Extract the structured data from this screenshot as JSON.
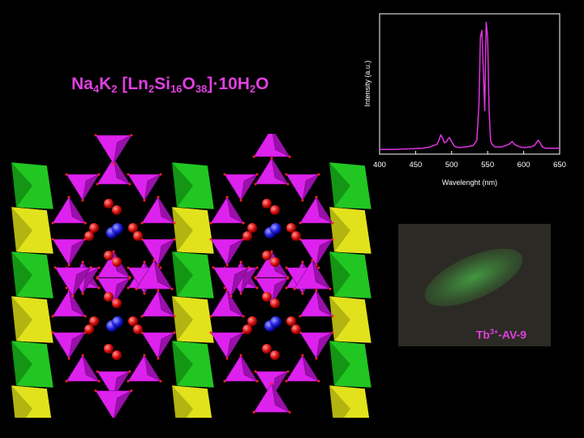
{
  "formula": {
    "p1": "Na",
    "s1": "4",
    "p2": "K",
    "s2": "2",
    "p3": " [Ln",
    "s3": "2",
    "p4": "Si",
    "s4": "16",
    "p5": "O",
    "s5": "38",
    "p6": "]·10H",
    "s6": "2",
    "p7": "O"
  },
  "photo": {
    "label_main": "Tb",
    "label_sup": "3+",
    "label_rest": "-AV-9"
  },
  "colors": {
    "accent": "#e040e0",
    "line": "#e033e0",
    "tetra": "#cc22dd",
    "green": "#22cc22",
    "yellow": "#e8e820"
  },
  "chart_data": {
    "type": "line",
    "xlabel": "Wavelenght (nm)",
    "ylabel": "Intensity (a.u.)",
    "xlim": [
      400,
      650
    ],
    "ylim": [
      0,
      1
    ],
    "xticks": [
      400,
      450,
      500,
      550,
      600,
      650
    ],
    "grid": false,
    "series": [
      {
        "x": [
          400,
          420,
          440,
          460,
          470,
          480,
          483,
          485,
          487,
          490,
          493,
          495,
          497,
          500,
          503,
          506,
          510,
          520,
          530,
          535,
          538,
          540,
          542,
          544,
          546,
          548,
          550,
          552,
          554,
          556,
          560,
          570,
          575,
          580,
          584,
          587,
          590,
          595,
          600,
          610,
          615,
          620,
          623,
          626,
          630,
          640,
          650
        ],
        "values": [
          0.01,
          0.01,
          0.015,
          0.02,
          0.03,
          0.05,
          0.09,
          0.12,
          0.1,
          0.06,
          0.07,
          0.09,
          0.1,
          0.07,
          0.04,
          0.03,
          0.025,
          0.03,
          0.04,
          0.08,
          0.35,
          0.85,
          0.9,
          0.6,
          0.3,
          0.96,
          0.85,
          0.3,
          0.08,
          0.05,
          0.03,
          0.03,
          0.04,
          0.05,
          0.07,
          0.05,
          0.04,
          0.03,
          0.025,
          0.03,
          0.04,
          0.08,
          0.06,
          0.03,
          0.02,
          0.02,
          0.02
        ]
      }
    ]
  }
}
